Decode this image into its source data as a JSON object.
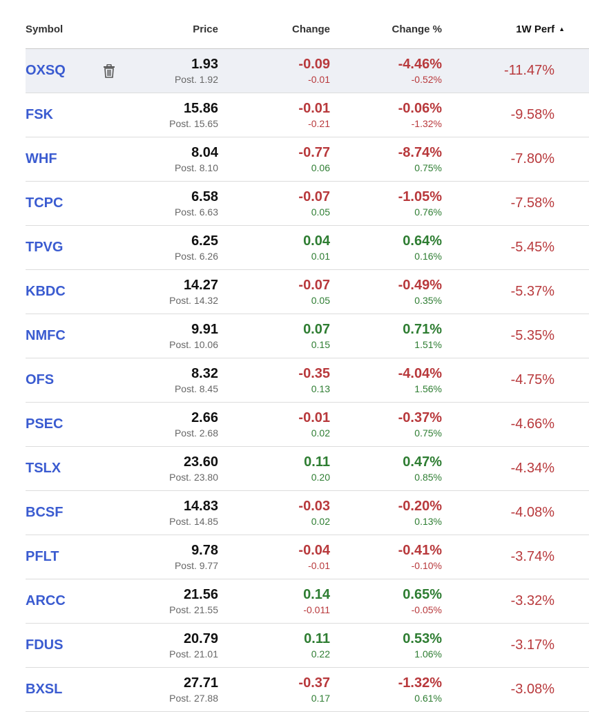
{
  "header": {
    "symbol": "Symbol",
    "price": "Price",
    "change": "Change",
    "change_pct": "Change %",
    "perf": "1W Perf",
    "sort_arrow": "▲"
  },
  "colors": {
    "negative": "#b8393c",
    "positive": "#2e7d32",
    "symbol": "#3a5bd0"
  },
  "rows": [
    {
      "symbol": "OXSQ",
      "price": "1.93",
      "post": "Post. 1.92",
      "change": "-0.09",
      "change_sub": "-0.01",
      "pct": "-4.46%",
      "pct_sub": "-0.52%",
      "perf": "-11.47%",
      "selected": true
    },
    {
      "symbol": "FSK",
      "price": "15.86",
      "post": "Post. 15.65",
      "change": "-0.01",
      "change_sub": "-0.21",
      "pct": "-0.06%",
      "pct_sub": "-1.32%",
      "perf": "-9.58%"
    },
    {
      "symbol": "WHF",
      "price": "8.04",
      "post": "Post. 8.10",
      "change": "-0.77",
      "change_sub": "0.06",
      "pct": "-8.74%",
      "pct_sub": "0.75%",
      "perf": "-7.80%"
    },
    {
      "symbol": "TCPC",
      "price": "6.58",
      "post": "Post. 6.63",
      "change": "-0.07",
      "change_sub": "0.05",
      "pct": "-1.05%",
      "pct_sub": "0.76%",
      "perf": "-7.58%"
    },
    {
      "symbol": "TPVG",
      "price": "6.25",
      "post": "Post. 6.26",
      "change": "0.04",
      "change_sub": "0.01",
      "pct": "0.64%",
      "pct_sub": "0.16%",
      "perf": "-5.45%"
    },
    {
      "symbol": "KBDC",
      "price": "14.27",
      "post": "Post. 14.32",
      "change": "-0.07",
      "change_sub": "0.05",
      "pct": "-0.49%",
      "pct_sub": "0.35%",
      "perf": "-5.37%"
    },
    {
      "symbol": "NMFC",
      "price": "9.91",
      "post": "Post. 10.06",
      "change": "0.07",
      "change_sub": "0.15",
      "pct": "0.71%",
      "pct_sub": "1.51%",
      "perf": "-5.35%"
    },
    {
      "symbol": "OFS",
      "price": "8.32",
      "post": "Post. 8.45",
      "change": "-0.35",
      "change_sub": "0.13",
      "pct": "-4.04%",
      "pct_sub": "1.56%",
      "perf": "-4.75%"
    },
    {
      "symbol": "PSEC",
      "price": "2.66",
      "post": "Post. 2.68",
      "change": "-0.01",
      "change_sub": "0.02",
      "pct": "-0.37%",
      "pct_sub": "0.75%",
      "perf": "-4.66%"
    },
    {
      "symbol": "TSLX",
      "price": "23.60",
      "post": "Post. 23.80",
      "change": "0.11",
      "change_sub": "0.20",
      "pct": "0.47%",
      "pct_sub": "0.85%",
      "perf": "-4.34%"
    },
    {
      "symbol": "BCSF",
      "price": "14.83",
      "post": "Post. 14.85",
      "change": "-0.03",
      "change_sub": "0.02",
      "pct": "-0.20%",
      "pct_sub": "0.13%",
      "perf": "-4.08%"
    },
    {
      "symbol": "PFLT",
      "price": "9.78",
      "post": "Post. 9.77",
      "change": "-0.04",
      "change_sub": "-0.01",
      "pct": "-0.41%",
      "pct_sub": "-0.10%",
      "perf": "-3.74%"
    },
    {
      "symbol": "ARCC",
      "price": "21.56",
      "post": "Post. 21.55",
      "change": "0.14",
      "change_sub": "-0.011",
      "pct": "0.65%",
      "pct_sub": "-0.05%",
      "perf": "-3.32%"
    },
    {
      "symbol": "FDUS",
      "price": "20.79",
      "post": "Post. 21.01",
      "change": "0.11",
      "change_sub": "0.22",
      "pct": "0.53%",
      "pct_sub": "1.06%",
      "perf": "-3.17%"
    },
    {
      "symbol": "BXSL",
      "price": "27.71",
      "post": "Post. 27.88",
      "change": "-0.37",
      "change_sub": "0.17",
      "pct": "-1.32%",
      "pct_sub": "0.61%",
      "perf": "-3.08%"
    }
  ]
}
